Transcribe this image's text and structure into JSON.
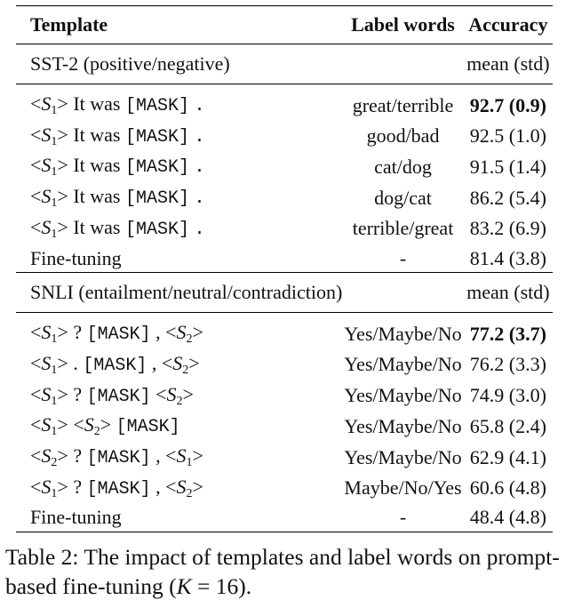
{
  "headers": {
    "template": "Template",
    "label_words": "Label words",
    "accuracy": "Accuracy"
  },
  "sst2": {
    "section": "SST-2 (positive/negative)",
    "section_metric": "mean (std)",
    "prompt_text": "It was",
    "mask": "[MASK]",
    "period": ".",
    "rows": [
      {
        "label": "great/terrible",
        "acc": "92.7 (0.9)"
      },
      {
        "label": "good/bad",
        "acc": "92.5 (1.0)"
      },
      {
        "label": "cat/dog",
        "acc": "91.5 (1.4)"
      },
      {
        "label": "dog/cat",
        "acc": "86.2 (5.4)"
      },
      {
        "label": "terrible/great",
        "acc": "83.2 (6.9)"
      }
    ],
    "finetune": {
      "template": "Fine-tuning",
      "label": "-",
      "acc": "81.4 (3.8)"
    }
  },
  "snli": {
    "section": "SNLI (entailment/neutral/contradiction)",
    "section_metric": "mean (std)",
    "mask": "[MASK]",
    "rows": [
      {
        "label": "Yes/Maybe/No",
        "acc": "77.2 (3.7)"
      },
      {
        "label": "Yes/Maybe/No",
        "acc": "76.2 (3.3)"
      },
      {
        "label": "Yes/Maybe/No",
        "acc": "74.9 (3.0)"
      },
      {
        "label": "Yes/Maybe/No",
        "acc": "65.8 (2.4)"
      },
      {
        "label": "Yes/Maybe/No",
        "acc": "62.9 (4.1)"
      },
      {
        "label": "Maybe/No/Yes",
        "acc": "60.6 (4.8)"
      }
    ],
    "finetune": {
      "template": "Fine-tuning",
      "label": "-",
      "acc": "48.4 (4.8)"
    }
  },
  "caption": {
    "text": "Table 2: The impact of templates and label words on prompt-based fine-tuning (",
    "k": "K",
    "eq": " = 16)."
  }
}
